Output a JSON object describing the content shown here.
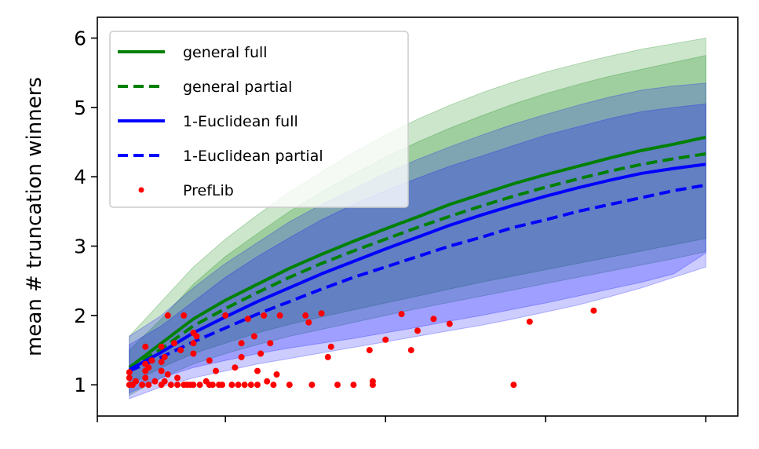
{
  "chart_data": {
    "type": "line",
    "title": "",
    "xlabel": "",
    "ylabel": "mean # truncation winners",
    "xlim": [
      1,
      21
    ],
    "ylim": [
      0.55,
      6.3
    ],
    "yticks": [
      1,
      2,
      3,
      4,
      5,
      6
    ],
    "xticks": [
      1,
      5,
      10,
      15,
      20
    ],
    "xtick_labels_visible": false,
    "x": [
      2,
      3,
      4,
      5,
      6,
      7,
      8,
      9,
      10,
      11,
      12,
      13,
      14,
      15,
      16,
      17,
      18,
      19,
      20
    ],
    "series": [
      {
        "name": "general full",
        "color": "#008000",
        "linestyle": "solid",
        "values": [
          1.25,
          1.6,
          1.95,
          2.22,
          2.45,
          2.68,
          2.88,
          3.07,
          3.25,
          3.42,
          3.6,
          3.75,
          3.9,
          4.03,
          4.15,
          4.27,
          4.38,
          4.47,
          4.57
        ],
        "band_inner": [
          [
            1.0,
            1.25,
            1.45,
            1.6,
            1.75,
            1.87,
            1.98,
            2.08,
            2.18,
            2.28,
            2.38,
            2.48,
            2.57,
            2.66,
            2.75,
            2.84,
            2.93,
            3.02,
            3.11
          ],
          [
            1.5,
            1.95,
            2.45,
            2.85,
            3.18,
            3.5,
            3.78,
            4.04,
            4.28,
            4.5,
            4.7,
            4.88,
            5.05,
            5.2,
            5.33,
            5.45,
            5.55,
            5.65,
            5.75
          ]
        ],
        "band_outer": [
          [
            0.85,
            1.1,
            1.3,
            1.45,
            1.58,
            1.7,
            1.8,
            1.9,
            2.0,
            2.1,
            2.19,
            2.28,
            2.37,
            2.46,
            2.55,
            2.64,
            2.73,
            2.82,
            2.92
          ],
          [
            1.7,
            2.2,
            2.7,
            3.1,
            3.45,
            3.78,
            4.07,
            4.35,
            4.6,
            4.83,
            5.03,
            5.21,
            5.37,
            5.51,
            5.63,
            5.74,
            5.84,
            5.92,
            6.0
          ]
        ]
      },
      {
        "name": "general partial",
        "color": "#008000",
        "linestyle": "dashed",
        "values": [
          1.22,
          1.52,
          1.85,
          2.1,
          2.33,
          2.55,
          2.75,
          2.93,
          3.1,
          3.27,
          3.43,
          3.58,
          3.72,
          3.85,
          3.97,
          4.08,
          4.18,
          4.26,
          4.33
        ]
      },
      {
        "name": "1-Euclidean full",
        "color": "#0000ff",
        "linestyle": "solid",
        "values": [
          1.22,
          1.47,
          1.75,
          1.98,
          2.2,
          2.4,
          2.6,
          2.78,
          2.96,
          3.13,
          3.3,
          3.45,
          3.59,
          3.72,
          3.84,
          3.95,
          4.05,
          4.12,
          4.18
        ],
        "band_inner": [
          [
            0.88,
            1.1,
            1.25,
            1.35,
            1.45,
            1.53,
            1.6,
            1.67,
            1.75,
            1.83,
            1.92,
            2.0,
            2.09,
            2.18,
            2.28,
            2.38,
            2.48,
            2.6,
            2.9
          ],
          [
            1.58,
            1.85,
            2.2,
            2.55,
            2.85,
            3.12,
            3.38,
            3.6,
            3.8,
            3.98,
            4.15,
            4.3,
            4.45,
            4.6,
            4.72,
            4.84,
            4.94,
            5.0,
            5.05
          ]
        ],
        "band_outer": [
          [
            0.8,
            0.97,
            1.1,
            1.2,
            1.3,
            1.38,
            1.46,
            1.54,
            1.62,
            1.7,
            1.78,
            1.86,
            1.95,
            2.05,
            2.15,
            2.27,
            2.4,
            2.55,
            2.7
          ],
          [
            1.7,
            2.0,
            2.4,
            2.75,
            3.05,
            3.35,
            3.6,
            3.82,
            4.05,
            4.25,
            4.43,
            4.6,
            4.76,
            4.9,
            5.03,
            5.15,
            5.25,
            5.31,
            5.35
          ]
        ]
      },
      {
        "name": "1-Euclidean partial",
        "color": "#0000ff",
        "linestyle": "dashed",
        "values": [
          1.2,
          1.4,
          1.62,
          1.82,
          2.02,
          2.2,
          2.38,
          2.55,
          2.7,
          2.85,
          3.0,
          3.13,
          3.27,
          3.38,
          3.5,
          3.6,
          3.7,
          3.8,
          3.88
        ]
      },
      {
        "name": "PrefLib",
        "color": "#ff0000",
        "type": "scatter",
        "points": [
          [
            2.0,
            1.0
          ],
          [
            2.0,
            1.1
          ],
          [
            2.0,
            1.18
          ],
          [
            2.1,
            1.0
          ],
          [
            2.2,
            1.05
          ],
          [
            2.4,
            1.0
          ],
          [
            2.5,
            1.1
          ],
          [
            2.5,
            1.2
          ],
          [
            2.5,
            1.3
          ],
          [
            2.5,
            1.55
          ],
          [
            2.6,
            1.0
          ],
          [
            2.6,
            1.25
          ],
          [
            2.7,
            1.35
          ],
          [
            2.8,
            1.05
          ],
          [
            3.0,
            1.0
          ],
          [
            3.0,
            1.2
          ],
          [
            3.0,
            1.33
          ],
          [
            3.0,
            1.55
          ],
          [
            3.1,
            1.05
          ],
          [
            3.1,
            1.4
          ],
          [
            3.2,
            1.15
          ],
          [
            3.2,
            2.0
          ],
          [
            3.3,
            1.0
          ],
          [
            3.4,
            1.6
          ],
          [
            3.5,
            1.0
          ],
          [
            3.5,
            1.1
          ],
          [
            3.6,
            1.5
          ],
          [
            3.7,
            1.0
          ],
          [
            3.7,
            2.0
          ],
          [
            3.8,
            1.0
          ],
          [
            3.9,
            1.0
          ],
          [
            4.0,
            1.0
          ],
          [
            4.0,
            1.45
          ],
          [
            4.0,
            1.6
          ],
          [
            4.0,
            1.75
          ],
          [
            4.1,
            1.7
          ],
          [
            4.2,
            1.0
          ],
          [
            4.4,
            1.05
          ],
          [
            4.5,
            1.35
          ],
          [
            4.5,
            1.0
          ],
          [
            4.6,
            1.0
          ],
          [
            4.7,
            1.2
          ],
          [
            4.8,
            1.0
          ],
          [
            4.9,
            1.0
          ],
          [
            5.0,
            2.0
          ],
          [
            5.2,
            1.0
          ],
          [
            5.3,
            1.25
          ],
          [
            5.4,
            1.0
          ],
          [
            5.5,
            1.4
          ],
          [
            5.5,
            1.6
          ],
          [
            5.6,
            1.0
          ],
          [
            5.7,
            1.95
          ],
          [
            5.8,
            1.0
          ],
          [
            5.9,
            1.7
          ],
          [
            6.0,
            1.0
          ],
          [
            6.0,
            1.2
          ],
          [
            6.1,
            1.45
          ],
          [
            6.2,
            2.0
          ],
          [
            6.3,
            1.05
          ],
          [
            6.4,
            1.6
          ],
          [
            6.5,
            1.0
          ],
          [
            6.6,
            1.15
          ],
          [
            6.7,
            2.0
          ],
          [
            7.0,
            1.0
          ],
          [
            7.5,
            2.0
          ],
          [
            7.6,
            1.9
          ],
          [
            7.7,
            1.0
          ],
          [
            8.0,
            2.03
          ],
          [
            8.2,
            1.4
          ],
          [
            8.3,
            1.55
          ],
          [
            8.5,
            1.0
          ],
          [
            9.0,
            1.0
          ],
          [
            9.5,
            1.5
          ],
          [
            9.6,
            1.05
          ],
          [
            9.6,
            1.0
          ],
          [
            10.0,
            1.65
          ],
          [
            10.5,
            2.02
          ],
          [
            10.8,
            1.5
          ],
          [
            11.0,
            1.78
          ],
          [
            11.5,
            1.95
          ],
          [
            12.0,
            1.88
          ],
          [
            14.0,
            1.0
          ],
          [
            14.5,
            1.91
          ],
          [
            16.5,
            2.07
          ]
        ]
      }
    ],
    "legend": {
      "position": "top-left",
      "entries": [
        "general full",
        "general partial",
        "1-Euclidean full",
        "1-Euclidean partial",
        "PrefLib"
      ]
    }
  }
}
